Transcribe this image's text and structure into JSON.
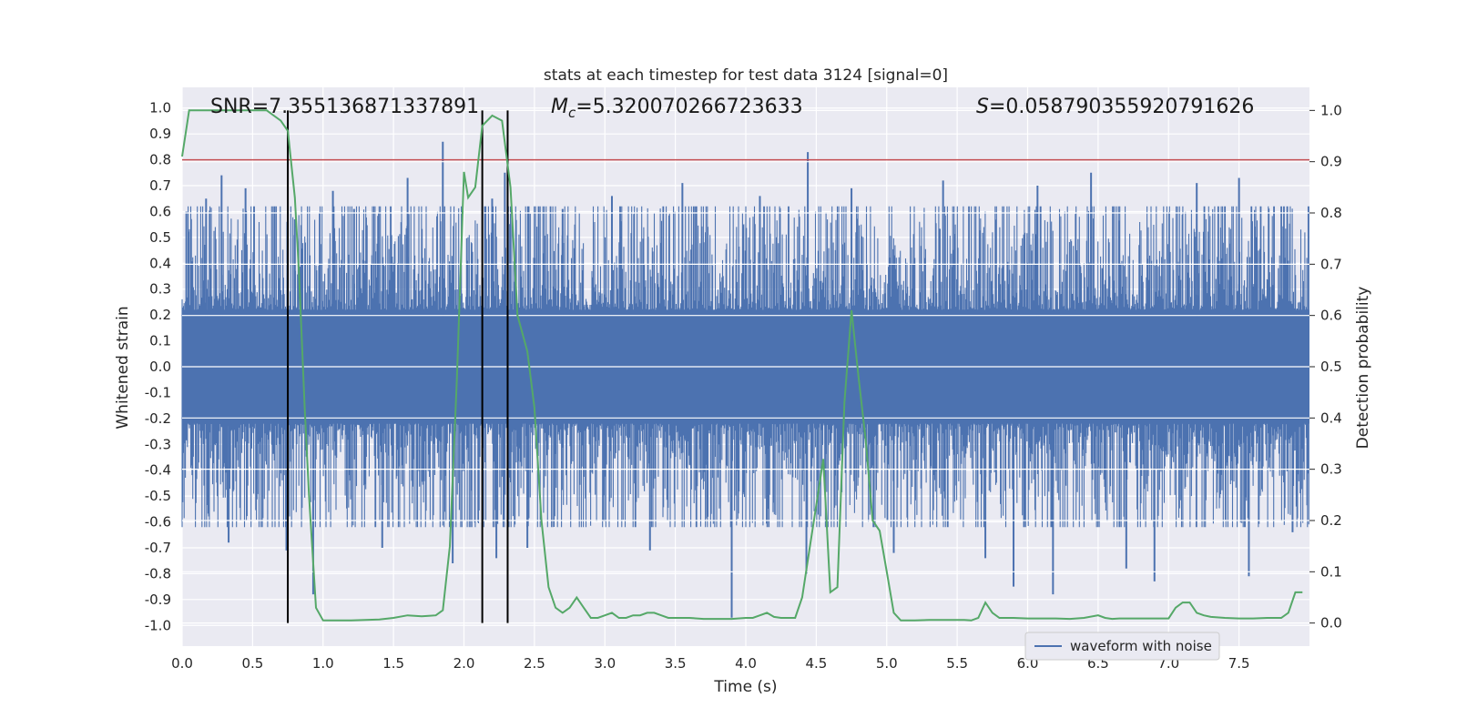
{
  "colors": {
    "plot_bg": "#eaeaf2",
    "grid": "#ffffff",
    "waveform": "#4c72b0",
    "probability": "#55a868",
    "threshold": "#c44e52",
    "markers": "#000000",
    "text": "#262626"
  },
  "chart_data": {
    "type": "line",
    "title": "stats at each timestep for test data 3124 [signal=0]",
    "xlabel": "Time (s)",
    "ylabel_left": "Whitened strain",
    "ylabel_right": "Detection probability",
    "xlim": [
      0.0,
      8.0
    ],
    "ylim_left": [
      -1.08,
      1.08
    ],
    "ylim_right": [
      -0.045,
      1.045
    ],
    "x_ticks": [
      "0.0",
      "0.5",
      "1.0",
      "1.5",
      "2.0",
      "2.5",
      "3.0",
      "3.5",
      "4.0",
      "4.5",
      "5.0",
      "5.5",
      "6.0",
      "6.5",
      "7.0",
      "7.5"
    ],
    "y_ticks_left": [
      "1.0",
      "0.9",
      "0.8",
      "0.7",
      "0.6",
      "0.5",
      "0.4",
      "0.3",
      "0.2",
      "0.1",
      "0.0",
      "-0.1",
      "-0.2",
      "-0.3",
      "-0.4",
      "-0.5",
      "-0.6",
      "-0.7",
      "-0.8",
      "-0.9",
      "-1.0"
    ],
    "y_ticks_right": [
      "1.0",
      "0.9",
      "0.8",
      "0.7",
      "0.6",
      "0.5",
      "0.4",
      "0.3",
      "0.2",
      "0.1",
      "0.0"
    ],
    "annotations": {
      "snr": "SNR=7.355136871337891",
      "mc_symbol": "M",
      "mc_sub": "c",
      "mc_value": "=5.320070266723633",
      "s_symbol": "S",
      "s_value": "=0.058790355920791626"
    },
    "threshold_strain": 0.8,
    "vertical_markers": [
      0.75,
      2.13,
      2.31
    ],
    "legend": {
      "label": "waveform with noise",
      "placement": "lower-center-right"
    },
    "waveform_envelope": {
      "name": "waveform with noise",
      "band_abs": 0.22,
      "typical_peak_abs": 0.45,
      "spikes": [
        {
          "t": 0.03,
          "v": 0.6
        },
        {
          "t": 0.17,
          "v": 0.65
        },
        {
          "t": 0.28,
          "v": 0.74
        },
        {
          "t": 0.33,
          "v": -0.68
        },
        {
          "t": 0.45,
          "v": 0.69
        },
        {
          "t": 0.74,
          "v": -0.71
        },
        {
          "t": 0.8,
          "v": 0.57
        },
        {
          "t": 0.93,
          "v": -0.88
        },
        {
          "t": 1.07,
          "v": 0.68
        },
        {
          "t": 1.22,
          "v": 0.61
        },
        {
          "t": 1.42,
          "v": -0.7
        },
        {
          "t": 1.6,
          "v": 0.73
        },
        {
          "t": 1.85,
          "v": 0.87
        },
        {
          "t": 1.92,
          "v": -0.76
        },
        {
          "t": 2.2,
          "v": 0.65
        },
        {
          "t": 2.23,
          "v": -0.74
        },
        {
          "t": 2.29,
          "v": 0.75
        },
        {
          "t": 2.45,
          "v": -0.7
        },
        {
          "t": 2.7,
          "v": 0.61
        },
        {
          "t": 3.05,
          "v": 0.66
        },
        {
          "t": 3.32,
          "v": -0.71
        },
        {
          "t": 3.55,
          "v": 0.71
        },
        {
          "t": 3.9,
          "v": -0.97
        },
        {
          "t": 4.1,
          "v": 0.66
        },
        {
          "t": 4.44,
          "v": 0.83
        },
        {
          "t": 4.43,
          "v": -0.8
        },
        {
          "t": 4.75,
          "v": 0.69
        },
        {
          "t": 5.05,
          "v": -0.72
        },
        {
          "t": 5.4,
          "v": 0.72
        },
        {
          "t": 5.7,
          "v": -0.74
        },
        {
          "t": 5.9,
          "v": -0.85
        },
        {
          "t": 6.07,
          "v": 0.7
        },
        {
          "t": 6.18,
          "v": -0.88
        },
        {
          "t": 6.45,
          "v": 0.75
        },
        {
          "t": 6.7,
          "v": -0.78
        },
        {
          "t": 6.9,
          "v": -0.83
        },
        {
          "t": 7.2,
          "v": 0.71
        },
        {
          "t": 7.5,
          "v": 0.73
        },
        {
          "t": 7.57,
          "v": -0.81
        },
        {
          "t": 7.88,
          "v": -0.64
        }
      ]
    },
    "series": [
      {
        "name": "Detection probability",
        "axis": "right",
        "x": [
          0.0,
          0.05,
          0.1,
          0.2,
          0.3,
          0.4,
          0.5,
          0.6,
          0.65,
          0.7,
          0.75,
          0.8,
          0.83,
          0.87,
          0.9,
          0.95,
          1.0,
          1.1,
          1.2,
          1.3,
          1.4,
          1.5,
          1.6,
          1.7,
          1.75,
          1.8,
          1.85,
          1.9,
          1.95,
          2.0,
          2.03,
          2.08,
          2.13,
          2.2,
          2.27,
          2.33,
          2.38,
          2.45,
          2.5,
          2.55,
          2.6,
          2.65,
          2.7,
          2.75,
          2.8,
          2.85,
          2.9,
          2.95,
          3.0,
          3.05,
          3.1,
          3.15,
          3.2,
          3.25,
          3.3,
          3.35,
          3.4,
          3.45,
          3.5,
          3.6,
          3.7,
          3.8,
          3.9,
          4.0,
          4.05,
          4.1,
          4.15,
          4.2,
          4.25,
          4.3,
          4.35,
          4.4,
          4.45,
          4.5,
          4.55,
          4.6,
          4.65,
          4.7,
          4.75,
          4.8,
          4.85,
          4.9,
          4.95,
          5.0,
          5.05,
          5.1,
          5.2,
          5.3,
          5.4,
          5.5,
          5.55,
          5.6,
          5.65,
          5.7,
          5.75,
          5.8,
          5.85,
          5.9,
          6.0,
          6.1,
          6.2,
          6.3,
          6.4,
          6.5,
          6.55,
          6.6,
          6.65,
          6.7,
          6.8,
          6.9,
          7.0,
          7.05,
          7.1,
          7.15,
          7.2,
          7.25,
          7.3,
          7.4,
          7.5,
          7.6,
          7.7,
          7.8,
          7.85,
          7.9,
          7.95
        ],
        "y": [
          0.91,
          1.0,
          1.0,
          1.0,
          1.0,
          1.0,
          1.0,
          1.0,
          0.99,
          0.98,
          0.96,
          0.83,
          0.68,
          0.42,
          0.25,
          0.03,
          0.005,
          0.005,
          0.005,
          0.006,
          0.007,
          0.01,
          0.015,
          0.013,
          0.014,
          0.015,
          0.025,
          0.15,
          0.48,
          0.88,
          0.83,
          0.85,
          0.97,
          0.99,
          0.98,
          0.85,
          0.6,
          0.53,
          0.42,
          0.2,
          0.07,
          0.03,
          0.02,
          0.03,
          0.05,
          0.03,
          0.01,
          0.01,
          0.015,
          0.02,
          0.01,
          0.01,
          0.015,
          0.015,
          0.02,
          0.02,
          0.015,
          0.01,
          0.01,
          0.01,
          0.008,
          0.008,
          0.008,
          0.01,
          0.01,
          0.015,
          0.02,
          0.012,
          0.01,
          0.01,
          0.01,
          0.05,
          0.14,
          0.23,
          0.32,
          0.06,
          0.07,
          0.43,
          0.61,
          0.48,
          0.36,
          0.2,
          0.18,
          0.1,
          0.02,
          0.005,
          0.005,
          0.006,
          0.006,
          0.006,
          0.006,
          0.005,
          0.01,
          0.04,
          0.02,
          0.01,
          0.01,
          0.01,
          0.009,
          0.009,
          0.009,
          0.008,
          0.01,
          0.015,
          0.01,
          0.008,
          0.009,
          0.009,
          0.009,
          0.009,
          0.009,
          0.03,
          0.04,
          0.04,
          0.02,
          0.015,
          0.012,
          0.01,
          0.009,
          0.009,
          0.01,
          0.01,
          0.02,
          0.06,
          0.06
        ]
      }
    ]
  }
}
